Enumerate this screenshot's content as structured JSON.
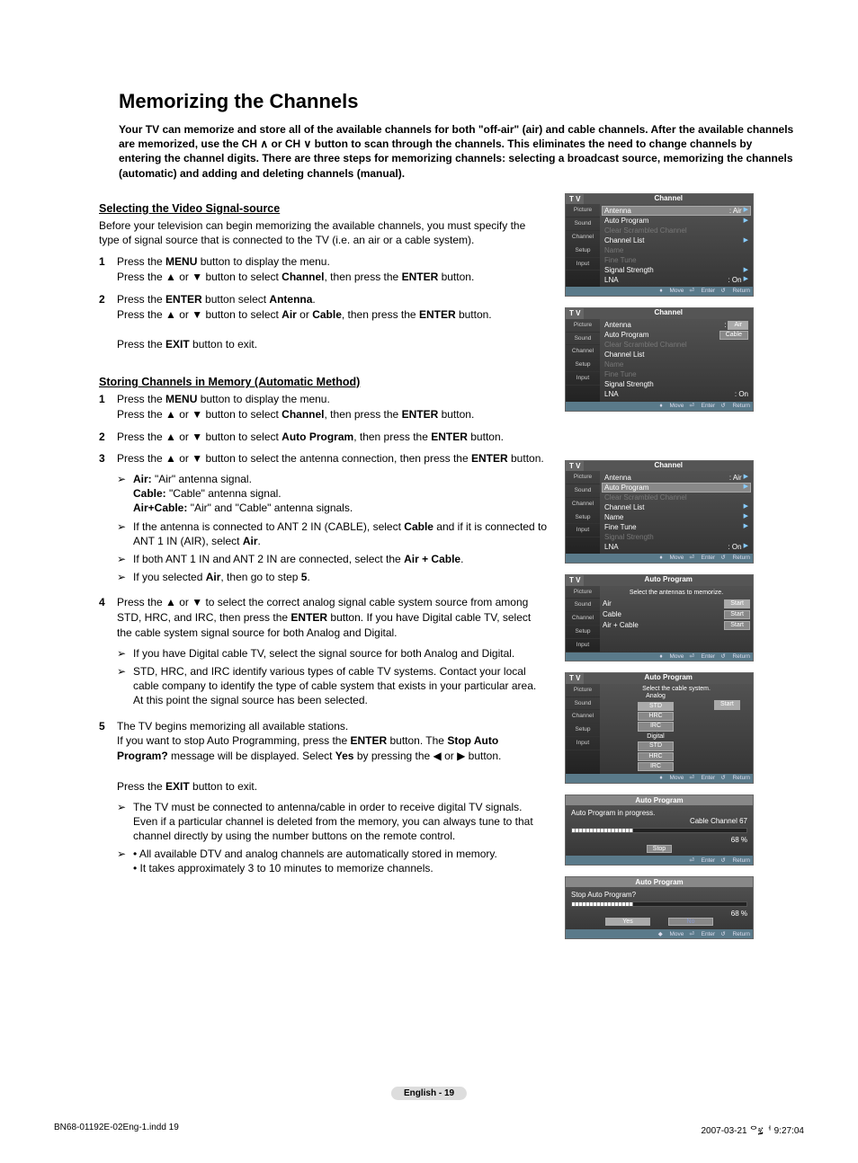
{
  "title": "Memorizing the Channels",
  "intro": "Your TV can memorize and store all of the available channels for both \"off-air\" (air) and cable channels. After the available channels are memorized, use the CH ∧ or CH ∨ button to scan through the channels. This eliminates the need to change channels by entering the channel digits. There are three steps for memorizing channels: selecting a broadcast source, memorizing the channels (automatic) and adding and deleting channels (manual).",
  "sectionA": {
    "heading": "Selecting the Video Signal-source",
    "para": "Before your television can begin memorizing the available channels, you must specify the type of signal source that is connected to the TV (i.e. an air or a cable system).",
    "steps": [
      {
        "n": "1",
        "html": "Press the <b>MENU</b> button to display the menu.<br>Press the ▲ or ▼ button to select <b>Channel</b>, then press the <b>ENTER</b> button."
      },
      {
        "n": "2",
        "html": "Press the <b>ENTER</b> button select <b>Antenna</b>.<br>Press the ▲ or ▼ button to select <b>Air</b> or <b>Cable</b>, then press the <b>ENTER</b> button.<br><br>Press the <b>EXIT</b> button to exit."
      }
    ]
  },
  "sectionB": {
    "heading": "Storing Channels in Memory (Automatic Method)",
    "steps": [
      {
        "n": "1",
        "html": "Press the <b>MENU</b> button to display the menu.<br>Press the ▲ or ▼ button to select <b>Channel</b>, then press the <b>ENTER</b> button."
      },
      {
        "n": "2",
        "html": "Press the ▲ or ▼ button to select <b>Auto Program</b>, then press the <b>ENTER</b> button."
      },
      {
        "n": "3",
        "html": "Press the ▲ or ▼ button to select the antenna connection, then press the <b>ENTER</b> button.",
        "subs": [
          "<b>Air:</b> \"Air\" antenna signal.<br><b>Cable:</b> \"Cable\" antenna signal.<br><b>Air+Cable:</b> \"Air\" and \"Cable\" antenna signals.",
          "If the antenna is connected to ANT 2 IN (CABLE), select <b>Cable</b> and if it is connected to ANT 1 IN (AIR), select <b>Air</b>.",
          "If both ANT 1 IN and ANT 2 IN are connected, select the <b>Air + Cable</b>.",
          "If you selected <b>Air</b>, then go to step <b>5</b>."
        ]
      },
      {
        "n": "4",
        "html": "Press the ▲ or ▼ to select the correct analog signal cable system source from among STD, HRC, and IRC, then press the <b>ENTER</b> button. If you have Digital cable TV, select the cable system signal source for both Analog and Digital.",
        "subs": [
          "If you have Digital cable TV, select the signal source for both Analog and Digital.",
          "STD, HRC, and IRC identify various types of cable TV systems. Contact your local cable company to identify the type of cable system that exists in your particular area. At this point the signal source has been selected."
        ]
      },
      {
        "n": "5",
        "html": "The TV begins memorizing all available stations.<br>If you want to stop Auto Programming, press the <b>ENTER</b> button. The <b>Stop Auto Program?</b> message will be displayed. Select <b>Yes</b> by pressing the ◀ or ▶ button.<br><br>Press the <b>EXIT</b> button to exit.",
        "subs": [
          "The TV must be connected to antenna/cable in order to receive digital TV signals. Even if a particular channel is deleted from the memory, you can always tune to that channel directly by using the number buttons on the remote control.",
          "• All available DTV and analog channels are automatically stored in memory.<br>• It takes approximately 3 to 10 minutes to memorize channels."
        ]
      }
    ]
  },
  "tvmenu": {
    "tab_tv": "T V",
    "title_channel": "Channel",
    "title_autoprogram": "Auto Program",
    "side": [
      "Picture",
      "Sound",
      "Channel",
      "Setup",
      "Input"
    ],
    "items1": [
      {
        "l": "Antenna",
        "r": ": Air",
        "sel": true,
        "arrow": true
      },
      {
        "l": "Auto Program",
        "arrow": true
      },
      {
        "l": "Clear Scrambled Channel",
        "dim": true
      },
      {
        "l": "Channel List",
        "arrow": true
      },
      {
        "l": "Name",
        "dim": true
      },
      {
        "l": "Fine Tune",
        "dim": true
      },
      {
        "l": "Signal Strength",
        "arrow": true
      },
      {
        "l": "LNA",
        "r": ": On",
        "arrow": true
      }
    ],
    "items2_sel": "Air",
    "items2_opt": "Cable",
    "items3": [
      {
        "l": "Antenna",
        "r": ": Air",
        "arrow": true
      },
      {
        "l": "Auto Program",
        "sel": true,
        "arrow": true
      },
      {
        "l": "Clear Scrambled Channel",
        "dim": true
      },
      {
        "l": "Channel List",
        "arrow": true
      },
      {
        "l": "Name",
        "arrow": true
      },
      {
        "l": "Fine Tune",
        "arrow": true
      },
      {
        "l": "Signal Strength",
        "dim": true
      },
      {
        "l": "LNA",
        "r": ": On",
        "arrow": true
      }
    ],
    "ap_select": "Select the antennas to memorize.",
    "ap_rows": [
      {
        "l": "Air",
        "b": "Start",
        "sel": true
      },
      {
        "l": "Cable",
        "b": "Start"
      },
      {
        "l": "Air + Cable",
        "b": "Start"
      }
    ],
    "cable_select": "Select the cable system.",
    "analog": "Analog",
    "digital": "Digital",
    "cable_opts": [
      "STD",
      "HRC",
      "IRC"
    ],
    "start": "Start",
    "prog_msg": "Auto Program in progress.",
    "prog_info": "Cable Channel 67",
    "prog_pct": "68 %",
    "stop": "Stop",
    "stop_q": "Stop Auto Program?",
    "yes": "Yes",
    "no": "No",
    "foot_move": "Move",
    "foot_enter": "Enter",
    "foot_return": "Return"
  },
  "pageLabel": "English - 19",
  "footerFile": "BN68-01192E-02Eng-1.indd   19",
  "footerDate": "2007-03-21   ᄋ፯ᅥ 9:27:04",
  "colors": {
    "accent1": "#888",
    "accent2": "#bbb",
    "tv_bg1": "#555",
    "tv_bg2": "#333",
    "tv_head": "#888",
    "tv_foot": "#5a7a8a",
    "arrow": "#8cf",
    "dim": "#777"
  }
}
